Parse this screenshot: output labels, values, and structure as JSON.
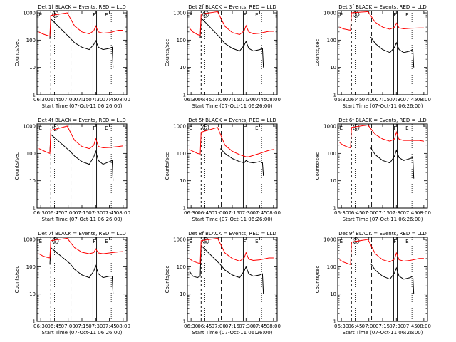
{
  "colors": {
    "events": "#000000",
    "lld": "#ff0000",
    "axis": "#000000"
  },
  "panel_template": {
    "ylabel": "Counts/sec",
    "xlabel": "Start Time (07-Oct-11 06:26:00)",
    "xticks": [
      "06:30",
      "06:45",
      "07:00",
      "07:15",
      "07:30",
      "07:45",
      "08:00"
    ],
    "yticks": [
      "1",
      "10",
      "100",
      "1000"
    ],
    "markers": [
      "E",
      "S",
      "F",
      "E"
    ]
  },
  "chart_data": [
    {
      "type": "line",
      "title": "Det 1f BLACK = Events, RED = LLD",
      "yscale": "log",
      "ylim": [
        1,
        1200
      ],
      "xlim": [
        "06:26",
        "08:04"
      ],
      "series": [
        {
          "name": "BLACK = Events",
          "color": "#000000",
          "x": [
            "06:28",
            "06:32",
            "06:37",
            "06:40",
            "06:41",
            "07:02",
            "07:07",
            "07:15",
            "07:23",
            "07:28",
            "07:30",
            "07:33",
            "07:38",
            "07:45",
            "07:48",
            "07:49"
          ],
          "y": [
            null,
            null,
            null,
            110,
            600,
            120,
            80,
            55,
            45,
            70,
            95,
            55,
            45,
            50,
            55,
            10
          ]
        },
        {
          "name": "RED = LLD",
          "color": "#ff0000",
          "x": [
            "06:28",
            "06:32",
            "06:37",
            "06:40",
            "06:41",
            "06:59",
            "07:07",
            "07:15",
            "07:23",
            "07:28",
            "07:30",
            "07:33",
            "07:38",
            "07:45",
            "07:55",
            "08:00"
          ],
          "y": [
            200,
            170,
            150,
            140,
            800,
            1000,
            330,
            200,
            170,
            220,
            330,
            200,
            180,
            190,
            230,
            230
          ]
        }
      ]
    },
    {
      "type": "line",
      "title": "Det 2f BLACK = Events, RED = LLD",
      "yscale": "log",
      "ylim": [
        1,
        1200
      ],
      "xlim": [
        "06:26",
        "08:04"
      ],
      "series": [
        {
          "name": "BLACK = Events",
          "color": "#000000",
          "x": [
            "06:28",
            "06:32",
            "06:37",
            "06:40",
            "06:41",
            "07:02",
            "07:07",
            "07:15",
            "07:23",
            "07:28",
            "07:30",
            "07:33",
            "07:38",
            "07:45",
            "07:48",
            "07:49"
          ],
          "y": [
            null,
            null,
            null,
            120,
            650,
            120,
            75,
            50,
            40,
            65,
            90,
            50,
            40,
            45,
            50,
            10
          ]
        },
        {
          "name": "RED = LLD",
          "color": "#ff0000",
          "x": [
            "06:28",
            "06:32",
            "06:37",
            "06:40",
            "06:41",
            "06:59",
            "07:07",
            "07:15",
            "07:23",
            "07:28",
            "07:30",
            "07:33",
            "07:38",
            "07:45",
            "07:55",
            "08:00"
          ],
          "y": [
            280,
            200,
            160,
            150,
            900,
            1100,
            320,
            190,
            160,
            220,
            340,
            200,
            170,
            180,
            210,
            210
          ]
        }
      ]
    },
    {
      "type": "line",
      "title": "Det 3f BLACK = Events, RED = LLD",
      "yscale": "log",
      "ylim": [
        1,
        1200
      ],
      "xlim": [
        "06:26",
        "08:04"
      ],
      "series": [
        {
          "name": "BLACK = Events",
          "color": "#000000",
          "x": [
            "07:02",
            "07:07",
            "07:15",
            "07:23",
            "07:28",
            "07:30",
            "07:33",
            "07:38",
            "07:45",
            "07:48",
            "07:49"
          ],
          "y": [
            130,
            75,
            45,
            35,
            55,
            80,
            45,
            35,
            40,
            45,
            10
          ]
        },
        {
          "name": "RED = LLD",
          "color": "#ff0000",
          "x": [
            "06:28",
            "06:32",
            "06:37",
            "06:40",
            "06:41",
            "06:59",
            "07:07",
            "07:15",
            "07:23",
            "07:28",
            "07:30",
            "07:33",
            "07:38",
            "07:45",
            "07:55",
            "08:00"
          ],
          "y": [
            300,
            260,
            240,
            230,
            1000,
            1100,
            450,
            300,
            250,
            300,
            420,
            280,
            260,
            270,
            280,
            280
          ]
        }
      ]
    },
    {
      "type": "line",
      "title": "Det 4f BLACK = Events, RED = LLD",
      "yscale": "log",
      "ylim": [
        1,
        1200
      ],
      "xlim": [
        "06:26",
        "08:04"
      ],
      "series": [
        {
          "name": "BLACK = Events",
          "color": "#000000",
          "x": [
            "06:40",
            "06:41",
            "07:02",
            "07:07",
            "07:15",
            "07:23",
            "07:28",
            "07:30",
            "07:33",
            "07:38",
            "07:45",
            "07:48",
            "07:49"
          ],
          "y": [
            110,
            500,
            120,
            80,
            50,
            40,
            75,
            120,
            55,
            40,
            50,
            55,
            10
          ]
        },
        {
          "name": "RED = LLD",
          "color": "#ff0000",
          "x": [
            "06:28",
            "06:32",
            "06:37",
            "06:40",
            "06:41",
            "06:59",
            "07:07",
            "07:15",
            "07:23",
            "07:28",
            "07:30",
            "07:33",
            "07:38",
            "07:45",
            "07:55",
            "08:00"
          ],
          "y": [
            150,
            130,
            110,
            100,
            700,
            1000,
            300,
            180,
            150,
            200,
            350,
            180,
            160,
            165,
            180,
            190
          ]
        }
      ]
    },
    {
      "type": "line",
      "title": "Det 5f BLACK = Events, RED = LLD",
      "yscale": "log",
      "ylim": [
        1,
        1200
      ],
      "xlim": [
        "06:26",
        "08:04"
      ],
      "series": [
        {
          "name": "BLACK = Events",
          "color": "#000000",
          "x": [
            "07:02",
            "07:07",
            "07:15",
            "07:23",
            "07:28",
            "07:30",
            "07:33",
            "07:38",
            "07:45",
            "07:48",
            "07:49"
          ],
          "y": [
            150,
            100,
            65,
            50,
            45,
            55,
            48,
            45,
            50,
            45,
            15
          ]
        },
        {
          "name": "RED = LLD",
          "color": "#ff0000",
          "x": [
            "06:28",
            "06:32",
            "06:37",
            "06:40",
            "06:41",
            "06:59",
            "07:07",
            "07:15",
            "07:23",
            "07:28",
            "07:30",
            "07:33",
            "07:38",
            "07:45",
            "07:55",
            "08:00"
          ],
          "y": [
            140,
            120,
            100,
            95,
            600,
            900,
            200,
            120,
            90,
            80,
            75,
            75,
            85,
            100,
            130,
            140
          ]
        }
      ]
    },
    {
      "type": "line",
      "title": "Det 6f BLACK = Events, RED = LLD",
      "yscale": "log",
      "ylim": [
        1,
        1200
      ],
      "xlim": [
        "06:26",
        "08:04"
      ],
      "series": [
        {
          "name": "BLACK = Events",
          "color": "#000000",
          "x": [
            "07:02",
            "07:07",
            "07:15",
            "07:23",
            "07:28",
            "07:30",
            "07:33",
            "07:38",
            "07:45",
            "07:48",
            "07:49"
          ],
          "y": [
            160,
            90,
            55,
            45,
            80,
            130,
            70,
            55,
            65,
            70,
            12
          ]
        },
        {
          "name": "RED = LLD",
          "color": "#ff0000",
          "x": [
            "06:28",
            "06:32",
            "06:37",
            "06:40",
            "06:41",
            "06:59",
            "07:07",
            "07:15",
            "07:23",
            "07:28",
            "07:30",
            "07:33",
            "07:38",
            "07:45",
            "07:55",
            "08:00"
          ],
          "y": [
            250,
            200,
            170,
            160,
            900,
            1100,
            500,
            340,
            280,
            340,
            600,
            330,
            300,
            300,
            300,
            280
          ]
        }
      ]
    },
    {
      "type": "line",
      "title": "Det 7f BLACK = Events, RED = LLD",
      "yscale": "log",
      "ylim": [
        1,
        1200
      ],
      "xlim": [
        "06:26",
        "08:04"
      ],
      "series": [
        {
          "name": "BLACK = Events",
          "color": "#000000",
          "x": [
            "06:40",
            "06:41",
            "07:02",
            "07:07",
            "07:15",
            "07:23",
            "07:28",
            "07:30",
            "07:33",
            "07:38",
            "07:45",
            "07:48",
            "07:49"
          ],
          "y": [
            120,
            500,
            130,
            80,
            50,
            40,
            70,
            110,
            55,
            40,
            45,
            45,
            10
          ]
        },
        {
          "name": "RED = LLD",
          "color": "#ff0000",
          "x": [
            "06:28",
            "06:32",
            "06:37",
            "06:40",
            "06:41",
            "06:59",
            "07:07",
            "07:15",
            "07:23",
            "07:28",
            "07:30",
            "07:33",
            "07:38",
            "07:45",
            "07:55",
            "08:00"
          ],
          "y": [
            300,
            250,
            220,
            210,
            900,
            1100,
            500,
            340,
            300,
            330,
            450,
            320,
            300,
            320,
            350,
            360
          ]
        }
      ]
    },
    {
      "type": "line",
      "title": "Det 8f BLACK = Events, RED = LLD",
      "yscale": "log",
      "ylim": [
        1,
        1200
      ],
      "xlim": [
        "06:26",
        "08:04"
      ],
      "series": [
        {
          "name": "BLACK = Events",
          "color": "#000000",
          "x": [
            "06:28",
            "06:32",
            "06:37",
            "06:40",
            "06:41",
            "07:02",
            "07:07",
            "07:15",
            "07:23",
            "07:28",
            "07:30",
            "07:33",
            "07:38",
            "07:45",
            "07:48",
            "07:49"
          ],
          "y": [
            70,
            45,
            40,
            45,
            600,
            120,
            75,
            50,
            40,
            70,
            100,
            55,
            45,
            50,
            55,
            10
          ]
        },
        {
          "name": "RED = LLD",
          "color": "#ff0000",
          "x": [
            "06:28",
            "06:32",
            "06:37",
            "06:40",
            "06:41",
            "06:59",
            "07:07",
            "07:15",
            "07:23",
            "07:28",
            "07:30",
            "07:33",
            "07:38",
            "07:45",
            "07:55",
            "08:00"
          ],
          "y": [
            200,
            160,
            140,
            130,
            900,
            1100,
            320,
            200,
            160,
            210,
            330,
            190,
            170,
            180,
            210,
            210
          ]
        }
      ]
    },
    {
      "type": "line",
      "title": "Det 9f BLACK = Events, RED = LLD",
      "yscale": "log",
      "ylim": [
        1,
        1200
      ],
      "xlim": [
        "06:26",
        "08:04"
      ],
      "series": [
        {
          "name": "BLACK = Events",
          "color": "#000000",
          "x": [
            "07:02",
            "07:07",
            "07:15",
            "07:23",
            "07:28",
            "07:30",
            "07:33",
            "07:38",
            "07:45",
            "07:48",
            "07:49"
          ],
          "y": [
            130,
            75,
            45,
            35,
            60,
            90,
            45,
            35,
            40,
            45,
            10
          ]
        },
        {
          "name": "RED = LLD",
          "color": "#ff0000",
          "x": [
            "06:28",
            "06:32",
            "06:37",
            "06:40",
            "06:41",
            "06:59",
            "07:07",
            "07:15",
            "07:23",
            "07:28",
            "07:30",
            "07:33",
            "07:38",
            "07:45",
            "07:55",
            "08:00"
          ],
          "y": [
            180,
            150,
            130,
            120,
            800,
            1000,
            300,
            180,
            150,
            190,
            320,
            180,
            160,
            170,
            200,
            200
          ]
        }
      ]
    }
  ]
}
